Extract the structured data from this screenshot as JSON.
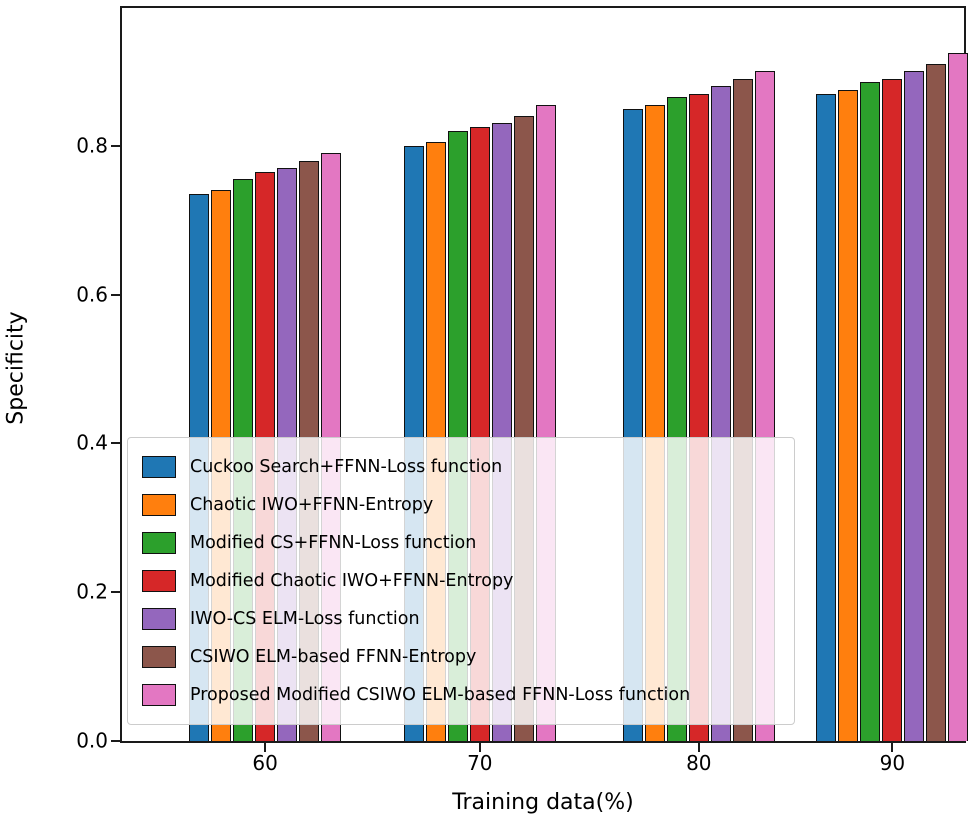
{
  "chart_data": {
    "type": "bar",
    "title": "",
    "xlabel": "Training data(%)",
    "ylabel": "Specificity",
    "categories": [
      "60",
      "70",
      "80",
      "90"
    ],
    "series": [
      {
        "name": "Cuckoo Search+FFNN-Loss function",
        "color": "#1f77b4",
        "values": [
          0.735,
          0.8,
          0.85,
          0.87
        ]
      },
      {
        "name": "Chaotic IWO+FFNN-Entropy",
        "color": "#ff7f0e",
        "values": [
          0.74,
          0.805,
          0.855,
          0.875
        ]
      },
      {
        "name": "Modified CS+FFNN-Loss function",
        "color": "#2ca02c",
        "values": [
          0.755,
          0.82,
          0.865,
          0.885
        ]
      },
      {
        "name": "Modified Chaotic IWO+FFNN-Entropy",
        "color": "#d62728",
        "values": [
          0.765,
          0.825,
          0.87,
          0.89
        ]
      },
      {
        "name": "IWO-CS ELM-Loss function",
        "color": "#9467bd",
        "values": [
          0.77,
          0.83,
          0.88,
          0.9
        ]
      },
      {
        "name": "CSIWO ELM-based FFNN-Entropy",
        "color": "#8c564b",
        "values": [
          0.78,
          0.84,
          0.89,
          0.91
        ]
      },
      {
        "name": "Proposed Modified CSIWO ELM-based FFNN-Loss function",
        "color": "#e377c2",
        "values": [
          0.79,
          0.855,
          0.9,
          0.925
        ]
      }
    ],
    "yticks": [
      {
        "label": "0.0",
        "value": 0.0
      },
      {
        "label": "0.2",
        "value": 0.2
      },
      {
        "label": "0.4",
        "value": 0.4
      },
      {
        "label": "0.6",
        "value": 0.6
      },
      {
        "label": "0.8",
        "value": 0.8
      }
    ],
    "ylim": [
      0,
      0.985
    ],
    "grid": false,
    "legend_position": "lower left",
    "bar_edge_color": "#111111"
  }
}
